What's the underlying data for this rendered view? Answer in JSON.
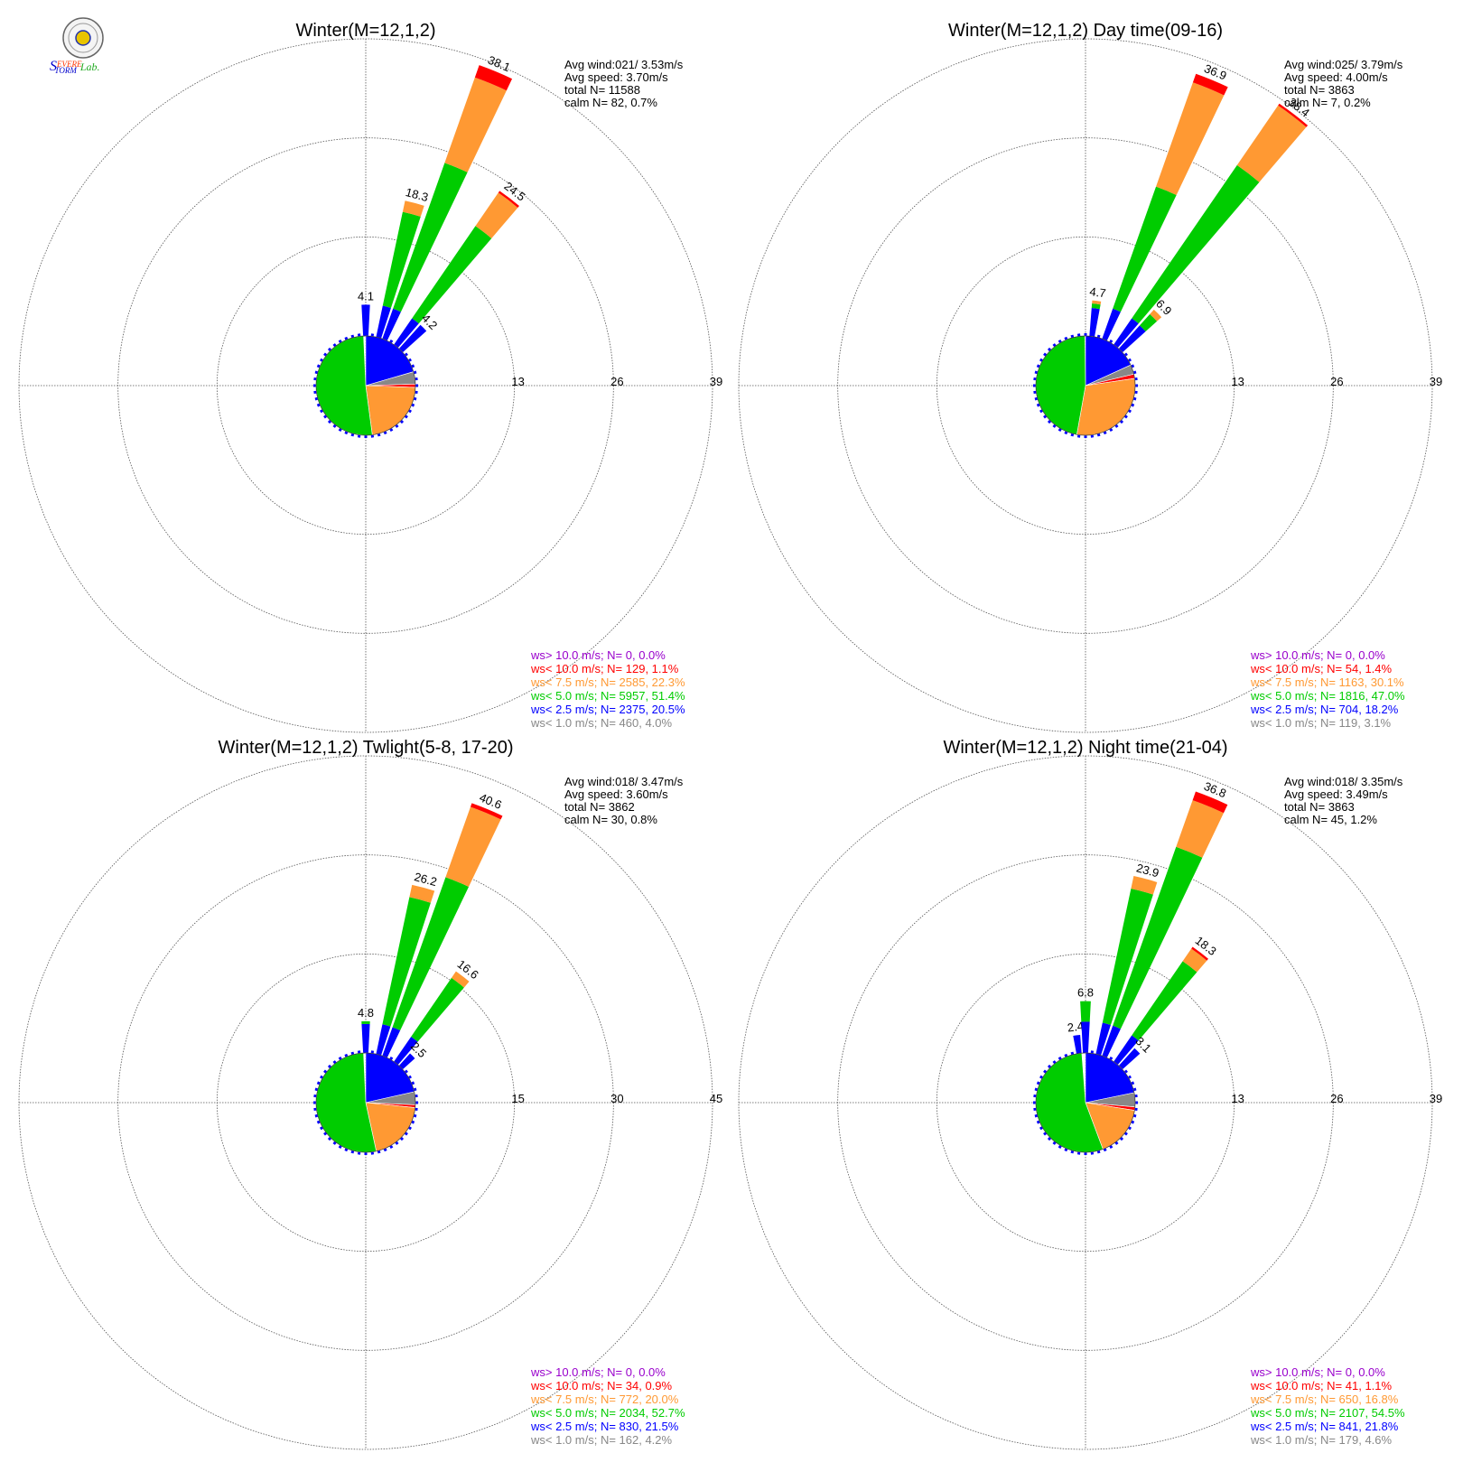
{
  "logo": {
    "text": "Severe Storm Lab."
  },
  "colors": {
    "gt10": "#9900cc",
    "lt10": "#ff0000",
    "lt7_5": "#ff9933",
    "lt5": "#00cc00",
    "lt2_5": "#0000ff",
    "lt1": "#888888",
    "ring": "#555555",
    "text": "#000000"
  },
  "chart_data": [
    {
      "type": "wind-rose",
      "title": "Winter(M=12,1,2)",
      "stats": [
        "Avg wind:021/ 3.53m/s",
        "Avg speed: 3.70m/s",
        "total N=       11588",
        "calm N=     82,   0.7%"
      ],
      "ring_labels": [
        "13",
        "26",
        "39"
      ],
      "rmax": 39,
      "petals": [
        {
          "dir": 0,
          "blue": 4.1,
          "green": 4.1,
          "orange": 4.1,
          "red": 4.1,
          "label": "4.1"
        },
        {
          "dir": 15,
          "blue": 4.2,
          "green": 16.8,
          "orange": 18.3,
          "red": 18.3,
          "label": "18.3"
        },
        {
          "dir": 22.5,
          "blue": 4.2,
          "green": 24.5,
          "orange": 36.4,
          "red": 38.1,
          "label": "38.1"
        },
        {
          "dir": 37.5,
          "blue": 4.2,
          "green": 18.9,
          "orange": 24.2,
          "red": 24.5,
          "label": "24.5"
        },
        {
          "dir": 45,
          "blue": 4.2,
          "green": 4.2,
          "orange": 4.2,
          "red": 4.2,
          "label": "4.2"
        }
      ],
      "legend": [
        {
          "text": "ws> 10.0 m/s; N=     0,  0.0%",
          "color_key": "gt10"
        },
        {
          "text": "ws< 10.0 m/s; N=   129,  1.1%",
          "color_key": "lt10"
        },
        {
          "text": "ws<  7.5 m/s; N=  2585, 22.3%",
          "color_key": "lt7_5"
        },
        {
          "text": "ws<  5.0 m/s; N=  5957, 51.4%",
          "color_key": "lt5"
        },
        {
          "text": "ws<  2.5 m/s; N=  2375, 20.5%",
          "color_key": "lt2_5"
        },
        {
          "text": "ws<  1.0 m/s; N=   460,  4.0%",
          "color_key": "lt1"
        }
      ],
      "pie": [
        {
          "color_key": "lt2_5",
          "pct": 20.5
        },
        {
          "color_key": "lt1",
          "pct": 4.0
        },
        {
          "color_key": "lt10",
          "pct": 1.1
        },
        {
          "color_key": "lt7_5",
          "pct": 22.3
        },
        {
          "color_key": "lt5",
          "pct": 51.4
        }
      ]
    },
    {
      "type": "wind-rose",
      "title": "Winter(M=12,1,2) Day time(09-16)",
      "stats": [
        "Avg wind:025/ 3.79m/s",
        "Avg speed: 4.00m/s",
        "total N=        3863",
        "calm N=      7,   0.2%"
      ],
      "ring_labels": [
        "13",
        "26",
        "39"
      ],
      "rmax": 39,
      "petals": [
        {
          "dir": 7.5,
          "blue": 3.7,
          "green": 4.3,
          "orange": 4.7,
          "red": 4.7,
          "label": "4.7"
        },
        {
          "dir": 22.5,
          "blue": 4.2,
          "green": 21.2,
          "orange": 35.7,
          "red": 36.9,
          "label": "36.9"
        },
        {
          "dir": 37.5,
          "blue": 4.2,
          "green": 28.6,
          "orange": 38.1,
          "red": 38.4,
          "label": "38.4"
        },
        {
          "dir": 45,
          "blue": 4.1,
          "green": 6.1,
          "orange": 6.9,
          "red": 6.9,
          "label": "6.9"
        }
      ],
      "legend": [
        {
          "text": "ws> 10.0 m/s; N=     0,  0.0%",
          "color_key": "gt10"
        },
        {
          "text": "ws< 10.0 m/s; N=    54,  1.4%",
          "color_key": "lt10"
        },
        {
          "text": "ws<  7.5 m/s; N=  1163, 30.1%",
          "color_key": "lt7_5"
        },
        {
          "text": "ws<  5.0 m/s; N=  1816, 47.0%",
          "color_key": "lt5"
        },
        {
          "text": "ws<  2.5 m/s; N=   704, 18.2%",
          "color_key": "lt2_5"
        },
        {
          "text": "ws<  1.0 m/s; N=   119,  3.1%",
          "color_key": "lt1"
        }
      ],
      "pie": [
        {
          "color_key": "lt2_5",
          "pct": 18.2
        },
        {
          "color_key": "lt1",
          "pct": 3.1
        },
        {
          "color_key": "lt10",
          "pct": 1.4
        },
        {
          "color_key": "lt7_5",
          "pct": 30.1
        },
        {
          "color_key": "lt5",
          "pct": 47.0
        }
      ]
    },
    {
      "type": "wind-rose",
      "title": "Winter(M=12,1,2) Twlight(5-8, 17-20)",
      "stats": [
        "Avg wind:018/ 3.47m/s",
        "Avg speed: 3.60m/s",
        "total N=        3862",
        "calm N=     30,   0.8%"
      ],
      "ring_labels": [
        "15",
        "30",
        "45"
      ],
      "rmax": 45,
      "petals": [
        {
          "dir": 0,
          "blue": 4.4,
          "green": 4.8,
          "orange": 4.8,
          "red": 4.8,
          "label": "4.8"
        },
        {
          "dir": 15,
          "blue": 4.6,
          "green": 24.3,
          "orange": 26.2,
          "red": 26.2,
          "label": "26.2"
        },
        {
          "dir": 22.5,
          "blue": 4.6,
          "green": 28.7,
          "orange": 40.0,
          "red": 40.6,
          "label": "40.6"
        },
        {
          "dir": 37.5,
          "blue": 4.6,
          "green": 15.4,
          "orange": 16.6,
          "red": 16.6,
          "label": "16.6"
        },
        {
          "dir": 45,
          "blue": 2.5,
          "green": 2.5,
          "orange": 2.5,
          "red": 2.5,
          "label": "2.5"
        }
      ],
      "legend": [
        {
          "text": "ws> 10.0 m/s; N=     0,  0.0%",
          "color_key": "gt10"
        },
        {
          "text": "ws< 10.0 m/s; N=    34,  0.9%",
          "color_key": "lt10"
        },
        {
          "text": "ws<  7.5 m/s; N=   772, 20.0%",
          "color_key": "lt7_5"
        },
        {
          "text": "ws<  5.0 m/s; N=  2034, 52.7%",
          "color_key": "lt5"
        },
        {
          "text": "ws<  2.5 m/s; N=   830, 21.5%",
          "color_key": "lt2_5"
        },
        {
          "text": "ws<  1.0 m/s; N=   162,  4.2%",
          "color_key": "lt1"
        }
      ],
      "pie": [
        {
          "color_key": "lt2_5",
          "pct": 21.5
        },
        {
          "color_key": "lt1",
          "pct": 4.2
        },
        {
          "color_key": "lt10",
          "pct": 0.9
        },
        {
          "color_key": "lt7_5",
          "pct": 20.0
        },
        {
          "color_key": "lt5",
          "pct": 52.7
        }
      ]
    },
    {
      "type": "wind-rose",
      "title": "Winter(M=12,1,2) Night time(21-04)",
      "stats": [
        "Avg wind:018/ 3.35m/s",
        "Avg speed: 3.49m/s",
        "total N=        3863",
        "calm N=     45,   1.2%"
      ],
      "ring_labels": [
        "13",
        "26",
        "39"
      ],
      "rmax": 39,
      "petals": [
        {
          "dir": 352.5,
          "blue": 2.4,
          "green": 2.4,
          "orange": 2.4,
          "red": 2.4,
          "label": "2.4"
        },
        {
          "dir": 0,
          "blue": 4.1,
          "green": 6.8,
          "orange": 6.8,
          "red": 6.8,
          "label": "6.8"
        },
        {
          "dir": 15,
          "blue": 4.2,
          "green": 22.2,
          "orange": 23.9,
          "red": 23.9,
          "label": "23.9"
        },
        {
          "dir": 22.5,
          "blue": 4.2,
          "green": 29.1,
          "orange": 35.6,
          "red": 36.8,
          "label": "36.8"
        },
        {
          "dir": 37.5,
          "blue": 4.2,
          "green": 16.0,
          "orange": 18.0,
          "red": 18.3,
          "label": "18.3"
        },
        {
          "dir": 45,
          "blue": 3.1,
          "green": 3.1,
          "orange": 3.1,
          "red": 3.1,
          "label": "3.1"
        }
      ],
      "legend": [
        {
          "text": "ws> 10.0 m/s; N=     0,  0.0%",
          "color_key": "gt10"
        },
        {
          "text": "ws< 10.0 m/s; N=    41,  1.1%",
          "color_key": "lt10"
        },
        {
          "text": "ws<  7.5 m/s; N=   650, 16.8%",
          "color_key": "lt7_5"
        },
        {
          "text": "ws<  5.0 m/s; N=  2107, 54.5%",
          "color_key": "lt5"
        },
        {
          "text": "ws<  2.5 m/s; N=   841, 21.8%",
          "color_key": "lt2_5"
        },
        {
          "text": "ws<  1.0 m/s; N=   179,  4.6%",
          "color_key": "lt1"
        }
      ],
      "pie": [
        {
          "color_key": "lt2_5",
          "pct": 21.8
        },
        {
          "color_key": "lt1",
          "pct": 4.6
        },
        {
          "color_key": "lt10",
          "pct": 1.1
        },
        {
          "color_key": "lt7_5",
          "pct": 16.8
        },
        {
          "color_key": "lt5",
          "pct": 54.5
        }
      ]
    }
  ]
}
